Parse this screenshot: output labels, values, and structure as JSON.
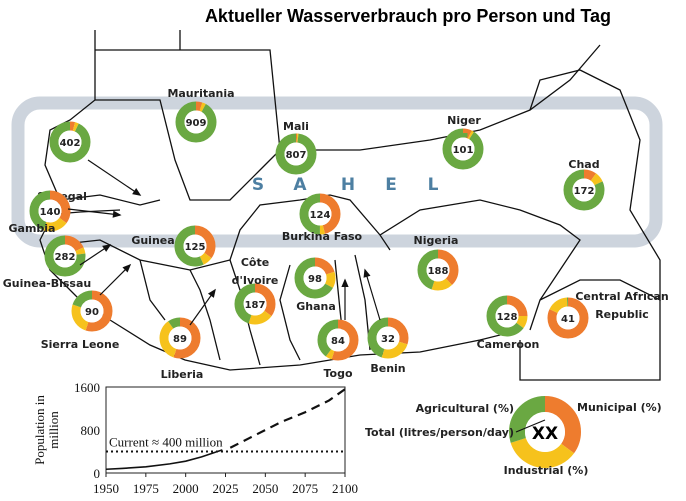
{
  "title": "Aktueller Wasserverbrauch pro Person und Tag",
  "region_label": [
    "S",
    "A",
    "H",
    "E",
    "L"
  ],
  "colors": {
    "agricultural": "#6aa842",
    "municipal": "#ee7c2e",
    "industrial": "#f6c21c",
    "sahel_band": "#cdd4dd",
    "sahel_text": "#4d7fa2"
  },
  "countries": [
    {
      "name": "Mauritania",
      "total": "909",
      "municipal": 5,
      "industrial": 3,
      "agricultural": 92
    },
    {
      "name": "Senegal",
      "total": "402",
      "municipal": 4,
      "industrial": 3,
      "agricultural": 93
    },
    {
      "name": "Gambia",
      "total": "140",
      "municipal": 35,
      "industrial": 20,
      "agricultural": 45
    },
    {
      "name": "Guinea-Bissau",
      "total": "282",
      "municipal": 18,
      "industrial": 5,
      "agricultural": 77
    },
    {
      "name": "Guinea",
      "total": "125",
      "municipal": 35,
      "industrial": 8,
      "agricultural": 57
    },
    {
      "name": "Mali",
      "total": "807",
      "municipal": 1,
      "industrial": 1,
      "agricultural": 98
    },
    {
      "name": "Niger",
      "total": "101",
      "municipal": 7,
      "industrial": 2,
      "agricultural": 91
    },
    {
      "name": "Burkina Faso",
      "total": "124",
      "municipal": 46,
      "industrial": 4,
      "agricultural": 50
    },
    {
      "name": "Chad",
      "total": "172",
      "municipal": 10,
      "industrial": 8,
      "agricultural": 82
    },
    {
      "name": "Nigeria",
      "total": "188",
      "municipal": 38,
      "industrial": 17,
      "agricultural": 45
    },
    {
      "name": "Cameroon",
      "total": "128",
      "municipal": 25,
      "industrial": 10,
      "agricultural": 65
    },
    {
      "name": "Central African Republic",
      "total": "41",
      "municipal": 82,
      "industrial": 17,
      "agricultural": 1
    },
    {
      "name": "Sierra Leone",
      "total": "90",
      "municipal": 55,
      "industrial": 25,
      "agricultural": 20
    },
    {
      "name": "Liberia",
      "total": "89",
      "municipal": 55,
      "industrial": 35,
      "agricultural": 10
    },
    {
      "name": "Côte d'Ivoire",
      "total": "187",
      "municipal": 35,
      "industrial": 20,
      "agricultural": 45
    },
    {
      "name": "Ghana",
      "total": "98",
      "municipal": 20,
      "industrial": 13,
      "agricultural": 67
    },
    {
      "name": "Togo",
      "total": "84",
      "municipal": 55,
      "industrial": 5,
      "agricultural": 40
    },
    {
      "name": "Benin",
      "total": "32",
      "municipal": 30,
      "industrial": 25,
      "agricultural": 45
    }
  ],
  "legend": {
    "total_placeholder": "XX",
    "agricultural": "Agricultural (%)",
    "municipal": "Municipal (%)",
    "industrial": "Industrial (%)",
    "total": "Total (litres/person/day)",
    "example": {
      "municipal": 35,
      "industrial": 35,
      "agricultural": 30
    }
  },
  "chart_data": {
    "type": "line",
    "ylabel": "Population in million",
    "xlim": [
      1950,
      2100
    ],
    "ylim": [
      0,
      1600
    ],
    "xticks": [
      "1950",
      "1975",
      "2000",
      "2025",
      "2050",
      "2075",
      "2100"
    ],
    "yticks": [
      "0",
      "800",
      "1600"
    ],
    "series": [
      {
        "style": "solid",
        "x": [
          1950,
          1960,
          1975,
          1990,
          2000,
          2010,
          2023
        ],
        "y": [
          70,
          85,
          115,
          170,
          220,
          300,
          430
        ]
      },
      {
        "style": "dashed",
        "x": [
          2028,
          2040,
          2050,
          2060,
          2075,
          2090,
          2100
        ],
        "y": [
          470,
          650,
          800,
          950,
          1130,
          1350,
          1560
        ]
      }
    ],
    "reference_line": {
      "y": 400,
      "style": "dotted",
      "label": "Current ≈ 400 million"
    }
  }
}
